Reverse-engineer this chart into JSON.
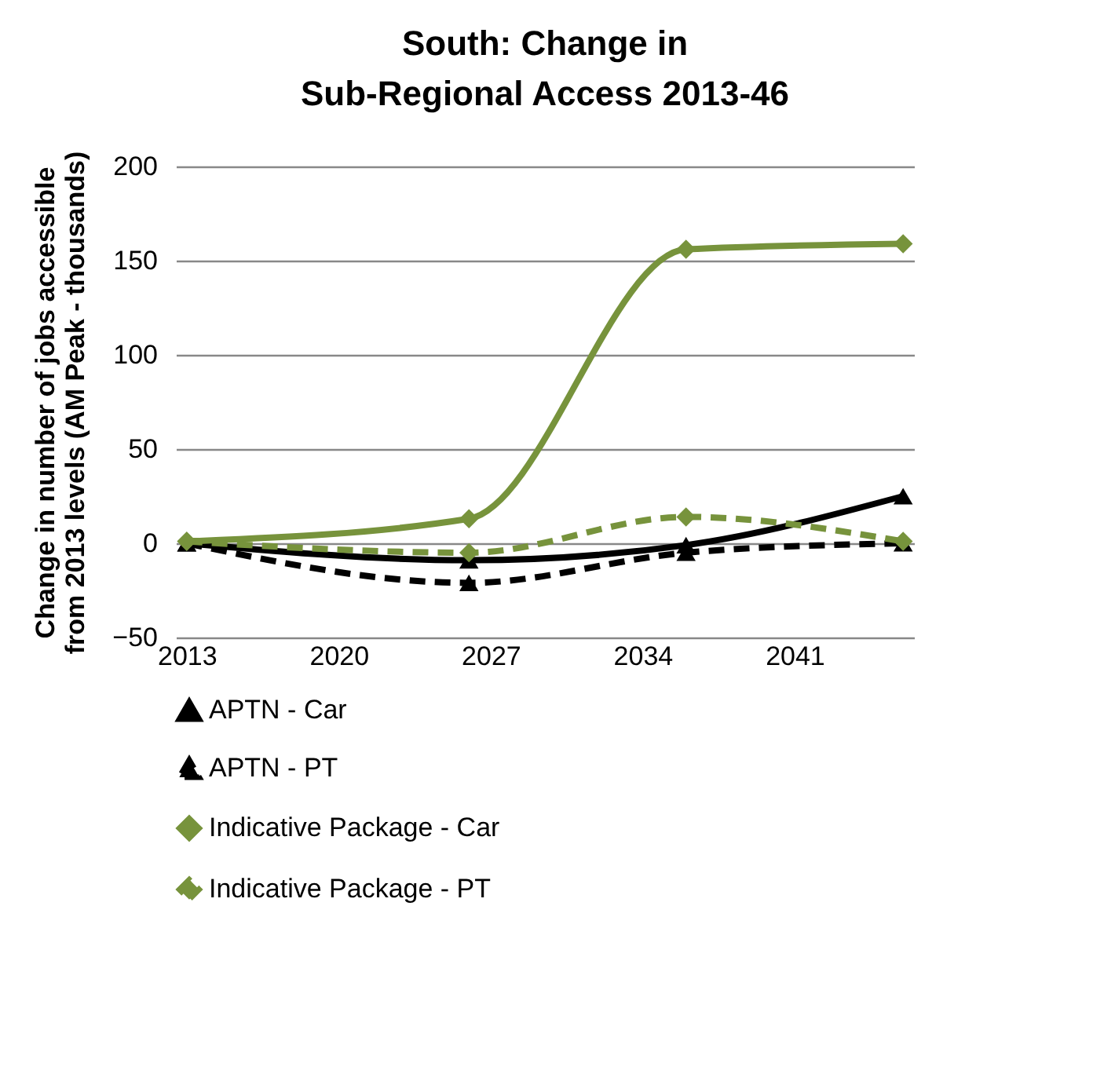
{
  "chart_data": {
    "type": "line",
    "title": "South: Change in Sub-Regional Access 2013-46",
    "ylabel": "Change in number of jobs accessible from 2013 levels (AM Peak - thousands)",
    "x": [
      2013,
      2026,
      2036,
      2046
    ],
    "xlim": [
      2012.5,
      2046.5
    ],
    "xticks": [
      2013,
      2020,
      2027,
      2034,
      2041
    ],
    "ylim": [
      -50,
      200
    ],
    "yticks": [
      -50,
      0,
      50,
      100,
      150,
      200
    ],
    "grid": "y",
    "legend": "bottom",
    "series": [
      {
        "name": "APTN - Car",
        "color": "#000000",
        "marker": "triangle",
        "line_style": "solid",
        "values": [
          0,
          -9,
          -1,
          25
        ]
      },
      {
        "name": "APTN - PT",
        "color": "#000000",
        "marker": "triangle",
        "line_style": "dashed",
        "values": [
          0,
          -21,
          -5,
          0
        ]
      },
      {
        "name": "Indicative Package - Car",
        "color": "#77933c",
        "marker": "diamond",
        "line_style": "solid",
        "values": [
          1,
          13,
          156,
          159
        ]
      },
      {
        "name": "Indicative Package - PT",
        "color": "#77933c",
        "marker": "diamond",
        "line_style": "dashed",
        "values": [
          1,
          -5,
          14,
          1
        ]
      }
    ]
  }
}
